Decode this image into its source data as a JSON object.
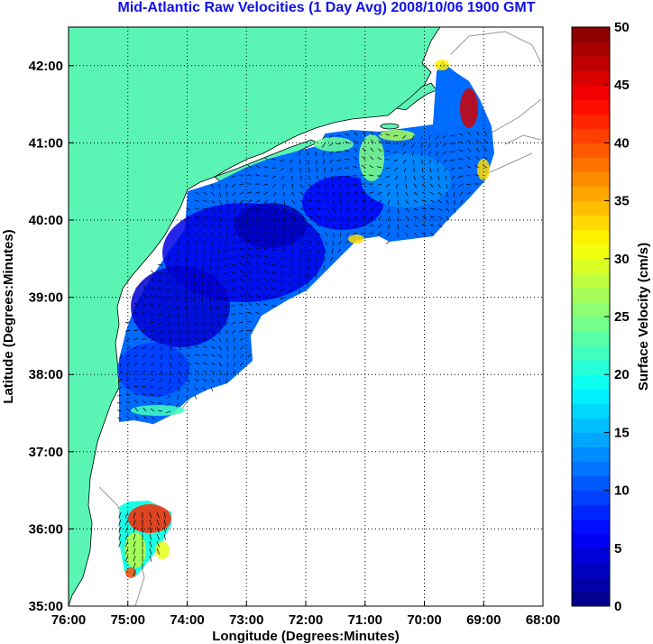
{
  "figure": {
    "title": "Mid-Atlantic Raw Velocities (1 Day Avg) 2008/10/06 1900 GMT",
    "xlabel": "Longitude (Degrees:Minutes)",
    "ylabel": "Latitude (Degrees:Minutes)",
    "x_ticks": [
      "76:00",
      "75:00",
      "74:00",
      "73:00",
      "72:00",
      "71:00",
      "70:00",
      "69:00",
      "68:00"
    ],
    "y_ticks": [
      "42:00",
      "41:00",
      "40:00",
      "39:00",
      "38:00",
      "37:00",
      "36:00",
      "35:00"
    ],
    "lon_range": [
      -76,
      -68
    ],
    "lat_range": [
      35,
      42.5
    ],
    "grid": "dotted",
    "land_color": "#5af5b4",
    "colorbar": {
      "label": "Surface Velocity (cm/s)",
      "range": [
        0,
        50
      ],
      "ticks": [
        "50",
        "45",
        "40",
        "35",
        "30",
        "25",
        "20",
        "15",
        "10",
        "5",
        "0"
      ],
      "colormap": "jet"
    }
  },
  "chart_data": {
    "type": "heatmap",
    "x_range_degrees_east": [
      -76,
      -68
    ],
    "y_range_degrees_north": [
      35,
      42.5
    ],
    "value_range_cm_s": [
      0,
      50
    ],
    "regions": [
      {
        "name": "",
        "lon_range": [
          -75.3,
          -71.0
        ],
        "lat_range": [
          37.5,
          40.3
        ],
        "typical_speed_cm_s": 8
      },
      {
        "name": "",
        "lon_range": [
          -72.5,
          -69.0
        ],
        "lat_range": [
          39.8,
          41.1
        ],
        "typical_speed_cm_s": 14
      },
      {
        "name": "",
        "lon_range": [
          -71.3,
          -70.8
        ],
        "lat_range": [
          40.6,
          41.0
        ],
        "typical_speed_cm_s": 27
      },
      {
        "name": "",
        "lon_range": [
          -69.4,
          -69.1
        ],
        "lat_range": [
          40.9,
          41.5
        ],
        "typical_speed_cm_s": 45
      },
      {
        "name": "",
        "lon_range": [
          -75.1,
          -74.3
        ],
        "lat_range": [
          35.3,
          36.3
        ],
        "typical_speed_cm_s": 35
      }
    ]
  }
}
